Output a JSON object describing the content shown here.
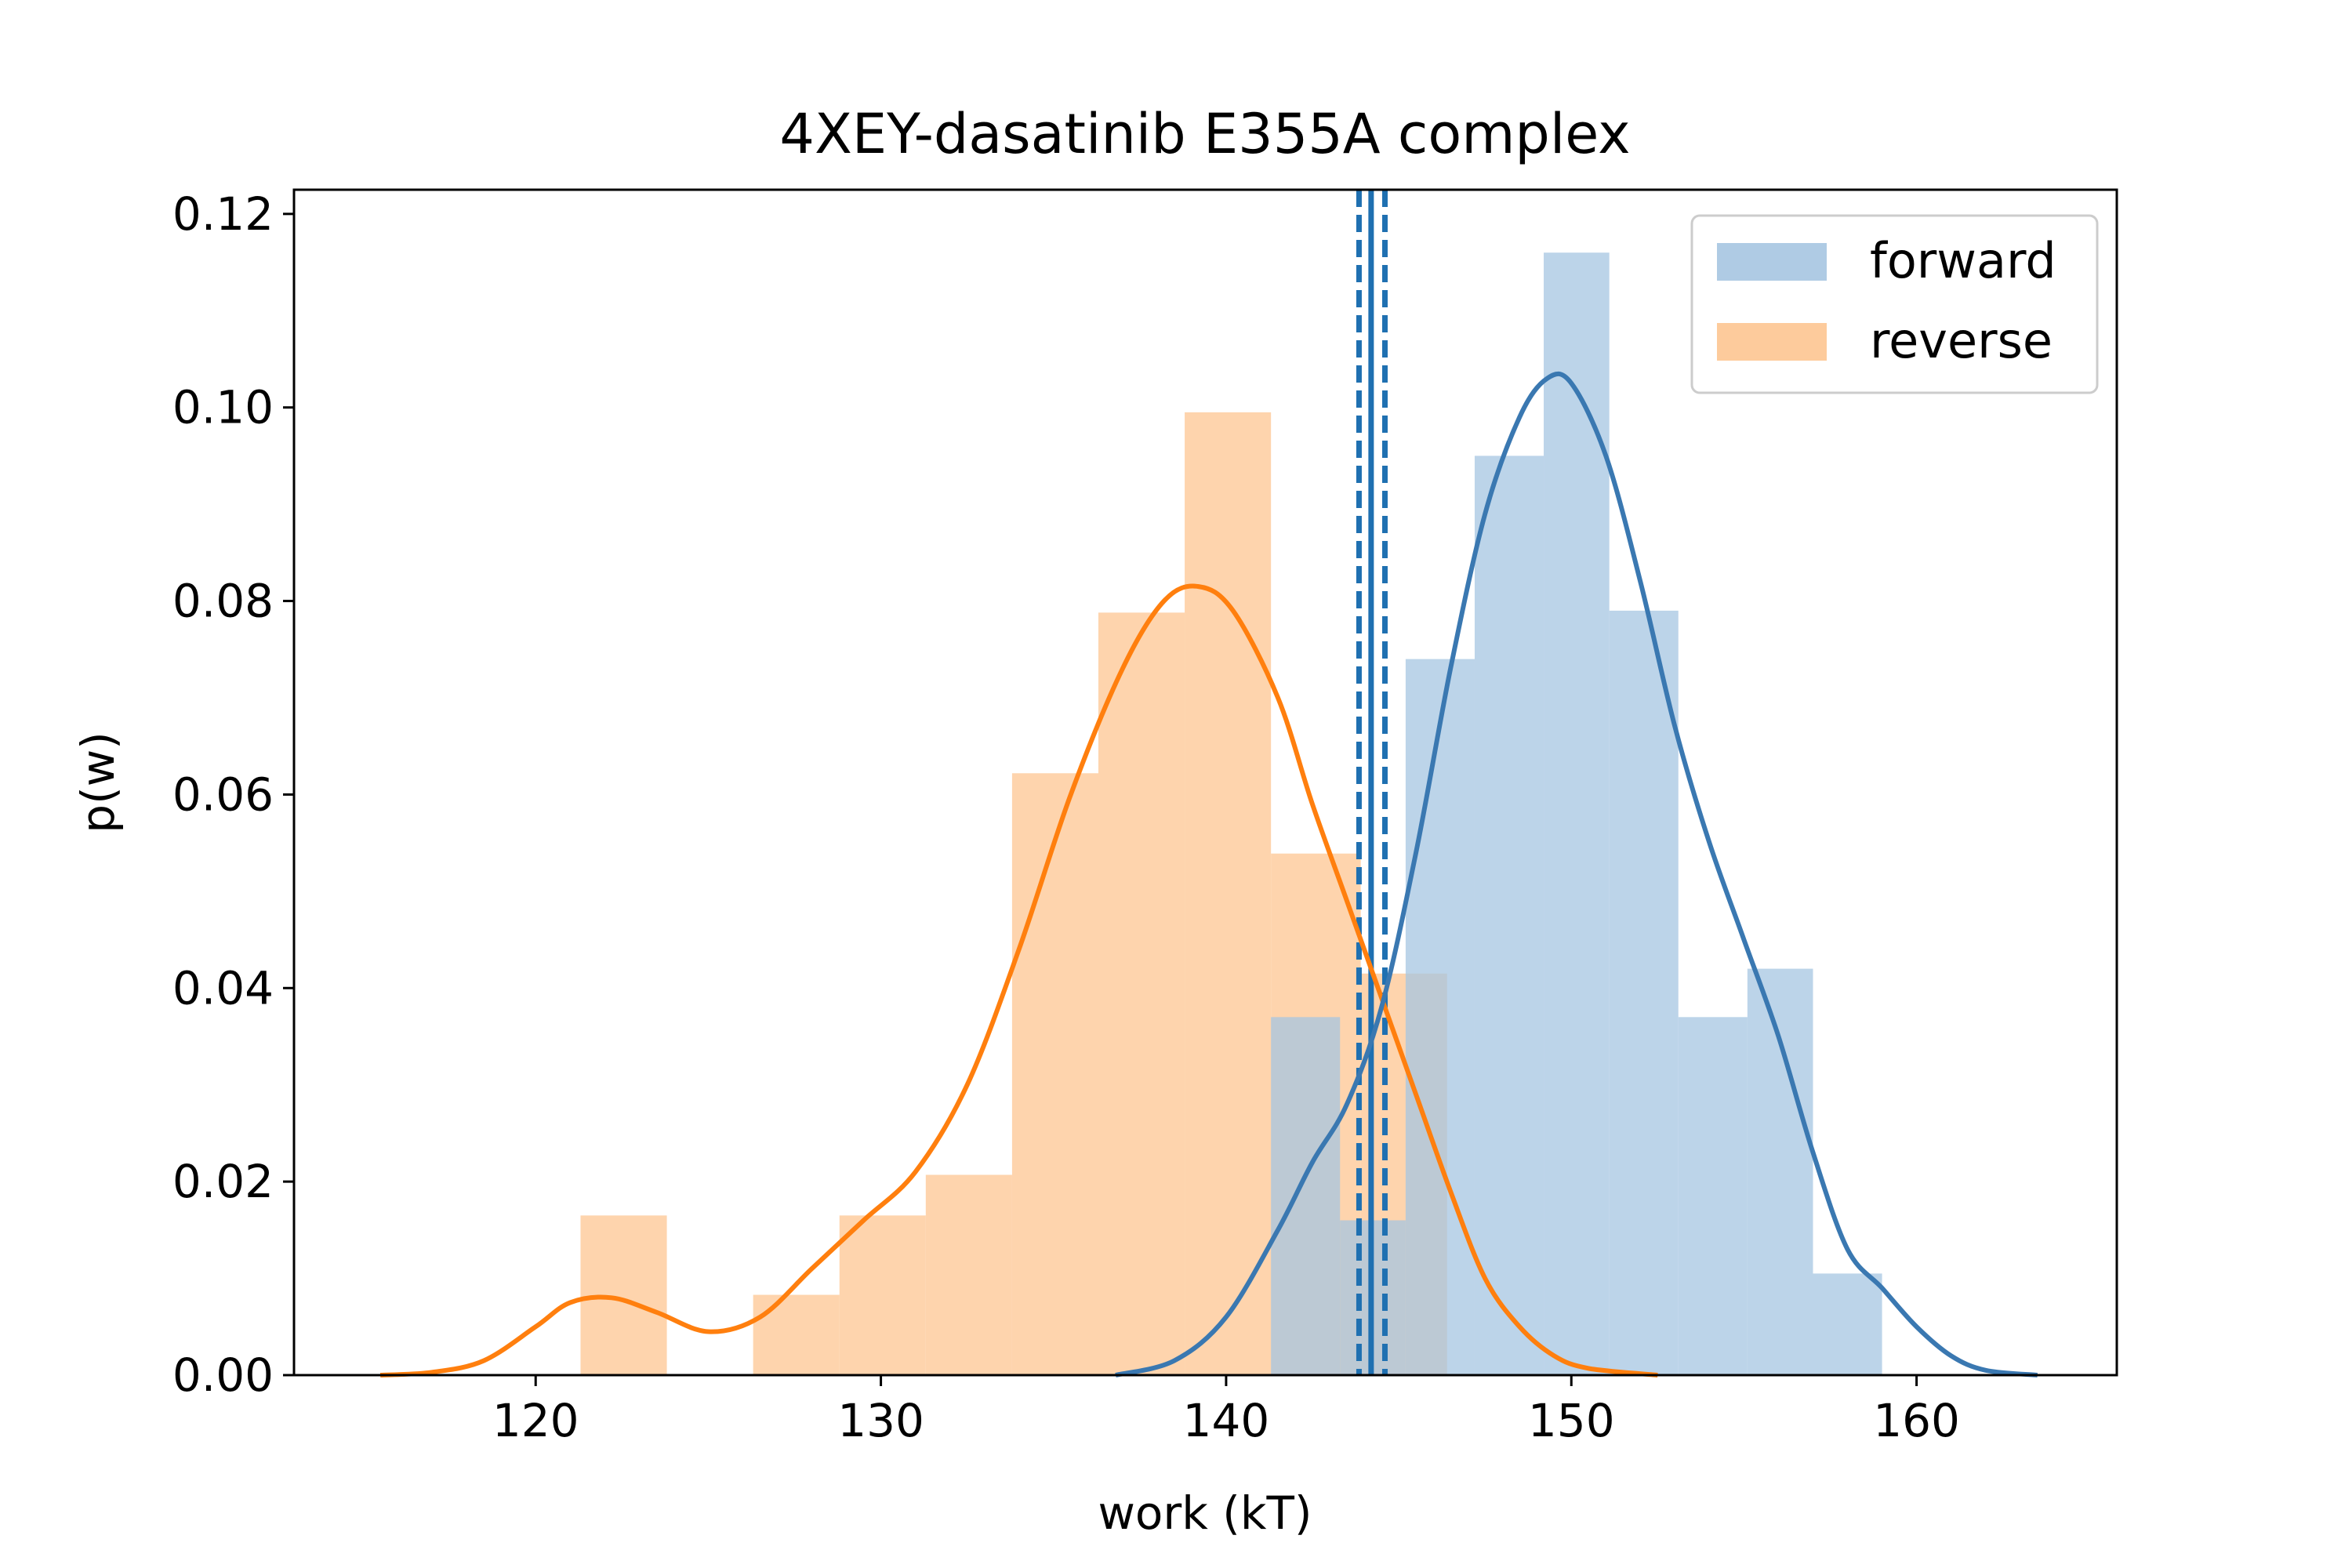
{
  "chart_data": {
    "type": "bar",
    "title": "4XEY-dasatinib E355A complex",
    "xlabel": "work (kT)",
    "ylabel": "p(w)",
    "xlim": [
      113,
      165.8
    ],
    "ylim": [
      0,
      0.1225
    ],
    "x_ticks": [
      120,
      130,
      140,
      150,
      160
    ],
    "x_tick_labels": [
      "120",
      "130",
      "140",
      "150",
      "160"
    ],
    "y_ticks": [
      0,
      0.02,
      0.04,
      0.06,
      0.08,
      0.1,
      0.12
    ],
    "y_tick_labels": [
      "0.00",
      "0.02",
      "0.04",
      "0.06",
      "0.08",
      "0.10",
      "0.12"
    ],
    "grid": false,
    "legend_position": "top-right",
    "colors": {
      "forward_bar": "#a6c5e1",
      "reverse_bar": "#fdc591",
      "forward_line": "#3a78b1",
      "reverse_line": "#ff7f0e",
      "vline": "#1f70b1"
    },
    "series": [
      {
        "name": "forward",
        "type": "histogram",
        "bins": [
          [
            141.3,
            143.3,
            0.037
          ],
          [
            143.3,
            145.2,
            0.016
          ],
          [
            145.2,
            147.2,
            0.074
          ],
          [
            147.2,
            149.2,
            0.095
          ],
          [
            149.2,
            151.1,
            0.116
          ],
          [
            151.1,
            153.1,
            0.079
          ],
          [
            153.1,
            155.1,
            0.037
          ],
          [
            155.1,
            157.0,
            0.042
          ],
          [
            157.0,
            159.0,
            0.0105
          ]
        ],
        "kde": [
          [
            136.8,
            0.0
          ],
          [
            138.5,
            0.0015
          ],
          [
            140.0,
            0.006
          ],
          [
            141.5,
            0.015
          ],
          [
            142.5,
            0.022
          ],
          [
            143.5,
            0.028
          ],
          [
            144.5,
            0.038
          ],
          [
            145.5,
            0.054
          ],
          [
            146.5,
            0.073
          ],
          [
            147.5,
            0.089
          ],
          [
            148.5,
            0.099
          ],
          [
            149.3,
            0.103
          ],
          [
            150.0,
            0.1025
          ],
          [
            151.0,
            0.095
          ],
          [
            152.0,
            0.082
          ],
          [
            153.0,
            0.067
          ],
          [
            154.0,
            0.055
          ],
          [
            155.0,
            0.045
          ],
          [
            156.0,
            0.035
          ],
          [
            157.0,
            0.023
          ],
          [
            158.0,
            0.013
          ],
          [
            159.0,
            0.009
          ],
          [
            160.0,
            0.005
          ],
          [
            161.0,
            0.002
          ],
          [
            162.0,
            0.0005
          ],
          [
            163.5,
            0.0
          ]
        ]
      },
      {
        "name": "reverse",
        "type": "histogram",
        "bins": [
          [
            121.3,
            123.8,
            0.0165
          ],
          [
            123.8,
            126.3,
            0.0
          ],
          [
            126.3,
            128.8,
            0.0083
          ],
          [
            128.8,
            131.3,
            0.0165
          ],
          [
            131.3,
            133.8,
            0.0207
          ],
          [
            133.8,
            136.3,
            0.0622
          ],
          [
            136.3,
            138.8,
            0.0788
          ],
          [
            138.8,
            141.3,
            0.0995
          ],
          [
            141.3,
            143.9,
            0.0539
          ],
          [
            143.9,
            146.4,
            0.0415
          ]
        ],
        "kde": [
          [
            115.5,
            0.0
          ],
          [
            117.0,
            0.0003
          ],
          [
            118.5,
            0.0015
          ],
          [
            120.0,
            0.005
          ],
          [
            121.0,
            0.0075
          ],
          [
            122.2,
            0.008
          ],
          [
            123.5,
            0.0065
          ],
          [
            125.0,
            0.0045
          ],
          [
            126.5,
            0.006
          ],
          [
            128.0,
            0.011
          ],
          [
            129.5,
            0.016
          ],
          [
            131.0,
            0.021
          ],
          [
            132.5,
            0.03
          ],
          [
            134.0,
            0.044
          ],
          [
            135.5,
            0.06
          ],
          [
            137.0,
            0.073
          ],
          [
            138.2,
            0.08
          ],
          [
            139.2,
            0.0815
          ],
          [
            140.2,
            0.079
          ],
          [
            141.5,
            0.07
          ],
          [
            142.5,
            0.059
          ],
          [
            143.5,
            0.049
          ],
          [
            144.5,
            0.039
          ],
          [
            145.5,
            0.029
          ],
          [
            146.5,
            0.019
          ],
          [
            147.5,
            0.01
          ],
          [
            148.5,
            0.005
          ],
          [
            149.5,
            0.002
          ],
          [
            150.5,
            0.0007
          ],
          [
            152.5,
            0.0
          ]
        ]
      }
    ],
    "vlines": [
      {
        "x": 144.2,
        "style": "solid"
      },
      {
        "x": 143.85,
        "style": "dashed"
      },
      {
        "x": 144.6,
        "style": "dashed"
      }
    ]
  }
}
